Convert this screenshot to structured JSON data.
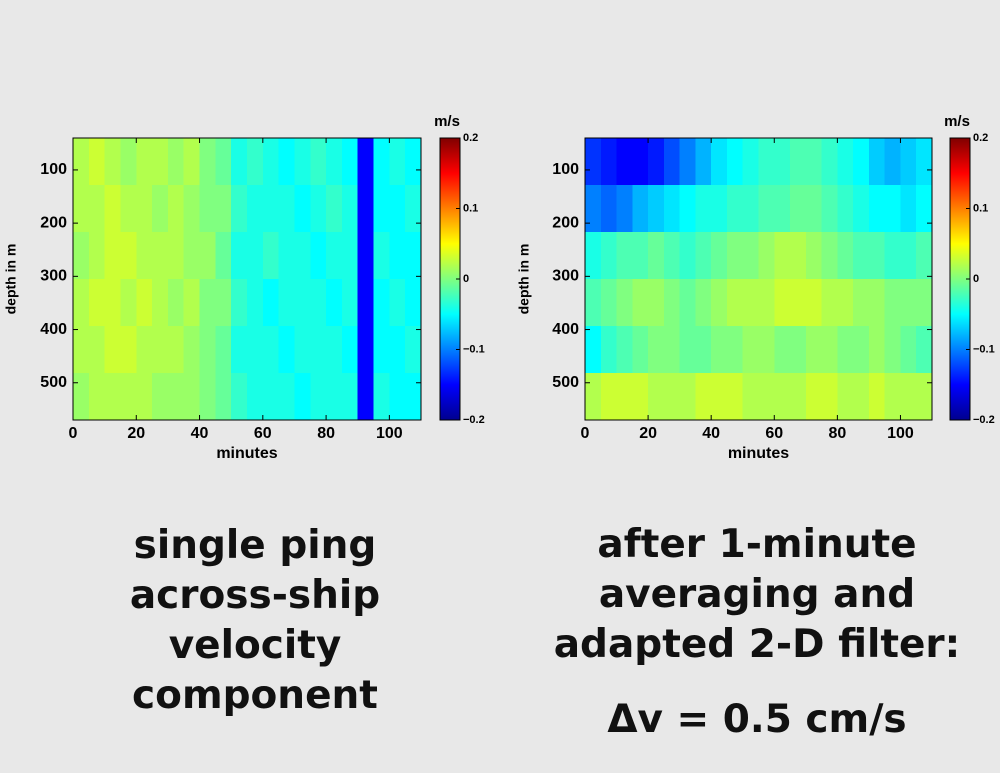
{
  "chart_data": [
    {
      "type": "heatmap",
      "xlabel": "minutes",
      "ylabel": "depth in m",
      "colorbar_label": "m/s",
      "colormap": "jet",
      "xlim": [
        0,
        110
      ],
      "xticks": [
        0,
        20,
        40,
        60,
        80,
        100
      ],
      "ylim": [
        40,
        570
      ],
      "y_reversed": true,
      "yticks": [
        100,
        200,
        300,
        400,
        500
      ],
      "clim": [
        -0.2,
        0.2
      ],
      "cticks": [
        {
          "value": -0.2,
          "label": "−0.2"
        },
        {
          "value": -0.1,
          "label": "−0.1"
        },
        0,
        0.1,
        0.2
      ],
      "z": [
        [
          0.02,
          0.03,
          0.02,
          0.01,
          0.02,
          0.02,
          0.01,
          0.02,
          0,
          -0.01,
          -0.04,
          -0.03,
          -0.04,
          -0.05,
          -0.04,
          -0.03,
          -0.04,
          -0.05,
          -0.15,
          -0.05,
          -0.04,
          -0.05
        ],
        [
          0.02,
          0.02,
          0.03,
          0.02,
          0.02,
          0.01,
          0.02,
          0.01,
          0,
          0,
          -0.03,
          -0.04,
          -0.04,
          -0.04,
          -0.05,
          -0.04,
          -0.03,
          -0.04,
          -0.15,
          -0.05,
          -0.05,
          -0.04
        ],
        [
          0.01,
          0.02,
          0.03,
          0.03,
          0.02,
          0.02,
          0.02,
          0.01,
          0.01,
          -0.01,
          -0.04,
          -0.04,
          -0.03,
          -0.04,
          -0.04,
          -0.05,
          -0.04,
          -0.04,
          -0.15,
          -0.04,
          -0.05,
          -0.05
        ],
        [
          0.02,
          0.03,
          0.03,
          0.02,
          0.03,
          0.02,
          0.01,
          0.02,
          0,
          0,
          -0.03,
          -0.04,
          -0.05,
          -0.04,
          -0.04,
          -0.04,
          -0.05,
          -0.04,
          -0.15,
          -0.05,
          -0.04,
          -0.05
        ],
        [
          0.02,
          0.02,
          0.03,
          0.03,
          0.02,
          0.02,
          0.02,
          0.01,
          0,
          -0.01,
          -0.04,
          -0.04,
          -0.04,
          -0.05,
          -0.04,
          -0.04,
          -0.04,
          -0.05,
          -0.15,
          -0.05,
          -0.05,
          -0.04
        ],
        [
          0.01,
          0.02,
          0.02,
          0.02,
          0.02,
          0.01,
          0.01,
          0.01,
          0,
          -0.01,
          -0.03,
          -0.04,
          -0.04,
          -0.04,
          -0.05,
          -0.04,
          -0.04,
          -0.04,
          -0.15,
          -0.04,
          -0.05,
          -0.05
        ]
      ]
    },
    {
      "type": "heatmap",
      "xlabel": "minutes",
      "ylabel": "depth in m",
      "colorbar_label": "m/s",
      "colormap": "jet",
      "xlim": [
        0,
        110
      ],
      "xticks": [
        0,
        20,
        40,
        60,
        80,
        100
      ],
      "ylim": [
        40,
        570
      ],
      "y_reversed": true,
      "yticks": [
        100,
        200,
        300,
        400,
        500
      ],
      "clim": [
        -0.2,
        0.2
      ],
      "cticks": [
        {
          "value": -0.2,
          "label": "−0.2"
        },
        {
          "value": -0.1,
          "label": "−0.1"
        },
        0,
        0.1,
        0.2
      ],
      "z": [
        [
          -0.13,
          -0.14,
          -0.15,
          -0.15,
          -0.14,
          -0.12,
          -0.1,
          -0.08,
          -0.06,
          -0.05,
          -0.04,
          -0.03,
          -0.03,
          -0.02,
          -0.02,
          -0.03,
          -0.04,
          -0.05,
          -0.07,
          -0.08,
          -0.07,
          -0.06
        ],
        [
          -0.1,
          -0.11,
          -0.1,
          -0.08,
          -0.07,
          -0.06,
          -0.05,
          -0.04,
          -0.04,
          -0.03,
          -0.03,
          -0.02,
          -0.02,
          -0.01,
          -0.01,
          -0.02,
          -0.03,
          -0.04,
          -0.05,
          -0.05,
          -0.06,
          -0.05
        ],
        [
          -0.04,
          -0.03,
          -0.02,
          -0.02,
          -0.01,
          -0.02,
          -0.03,
          -0.02,
          -0.01,
          0,
          0,
          0.01,
          0.02,
          0.02,
          0.01,
          0,
          -0.01,
          -0.02,
          -0.02,
          -0.03,
          -0.03,
          -0.02
        ],
        [
          -0.02,
          -0.01,
          0,
          0.01,
          0.01,
          0,
          -0.01,
          0,
          0.01,
          0.02,
          0.02,
          0.02,
          0.03,
          0.03,
          0.03,
          0.02,
          0.02,
          0.01,
          0.01,
          0,
          0,
          0
        ],
        [
          -0.05,
          -0.03,
          -0.02,
          -0.01,
          0,
          0,
          -0.01,
          -0.01,
          0,
          0,
          0.01,
          0.01,
          0,
          0,
          0.01,
          0.01,
          0,
          0,
          0.01,
          0,
          -0.01,
          -0.02
        ],
        [
          0.02,
          0.03,
          0.03,
          0.03,
          0.02,
          0.02,
          0.02,
          0.03,
          0.03,
          0.03,
          0.02,
          0.02,
          0.02,
          0.02,
          0.03,
          0.03,
          0.02,
          0.02,
          0.03,
          0.02,
          0.02,
          0.02
        ]
      ]
    }
  ],
  "captions": {
    "left": [
      "single ping",
      "across-ship",
      "velocity",
      "component"
    ],
    "right": [
      "after 1-minute",
      "averaging and",
      "adapted 2-D filter:"
    ],
    "right_formula": "Δv = 0.5 cm/s"
  }
}
